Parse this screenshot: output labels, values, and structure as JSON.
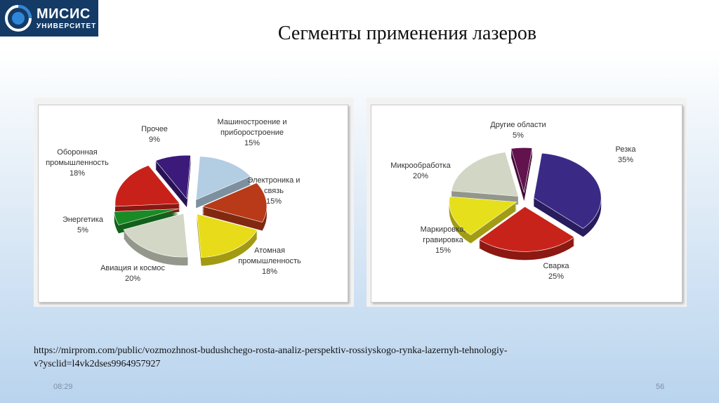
{
  "logo": {
    "name": "МИСИС",
    "sub": "УНИВЕРСИТЕТ"
  },
  "slide": {
    "title": "Сегменты применения лазеров",
    "source_url_line1": "https://mirprom.com/public/vozmozhnost-budushchego-rosta-analiz-perspektiv-rossiyskogo-rynka-lazernyh-tehnologiy-",
    "source_url_line2": "v?ysclid=l4vk2dses9964957927",
    "time": "08:29",
    "page_number": "56"
  },
  "chart_data": [
    {
      "type": "pie",
      "title": "",
      "unit": "%",
      "slices": [
        {
          "label_lines": [
            "Машиностроение и",
            "приборостроение"
          ],
          "value": 15,
          "value_label": "15%",
          "color": "#b3cde3"
        },
        {
          "label_lines": [
            "Электроника и",
            "связь"
          ],
          "value": 15,
          "value_label": "15%",
          "color": "#b83a18"
        },
        {
          "label_lines": [
            "Атомная",
            "промышленность"
          ],
          "value": 18,
          "value_label": "18%",
          "color": "#e8dc1a"
        },
        {
          "label_lines": [
            "Авиация и космос"
          ],
          "value": 20,
          "value_label": "20%",
          "color": "#d3d8c6"
        },
        {
          "label_lines": [
            "Энергетика"
          ],
          "value": 5,
          "value_label": "5%",
          "color": "#1a8a25"
        },
        {
          "label_lines": [
            "Оборонная",
            "промышленность"
          ],
          "value": 18,
          "value_label": "18%",
          "color": "#c8211a"
        },
        {
          "label_lines": [
            "Прочее"
          ],
          "value": 9,
          "value_label": "9%",
          "color": "#3b1a7a"
        }
      ]
    },
    {
      "type": "pie",
      "title": "",
      "unit": "%",
      "slices": [
        {
          "label_lines": [
            "Резка"
          ],
          "value": 35,
          "value_label": "35%",
          "color": "#3a2a86"
        },
        {
          "label_lines": [
            "Сварка"
          ],
          "value": 25,
          "value_label": "25%",
          "color": "#c8231a"
        },
        {
          "label_lines": [
            "Маркировка,",
            "гравировка"
          ],
          "value": 15,
          "value_label": "15%",
          "color": "#e6df1c"
        },
        {
          "label_lines": [
            "Микрообработка"
          ],
          "value": 20,
          "value_label": "20%",
          "color": "#d2d7c5"
        },
        {
          "label_lines": [
            "Другие области"
          ],
          "value": 5,
          "value_label": "5%",
          "color": "#62134e"
        }
      ]
    }
  ]
}
